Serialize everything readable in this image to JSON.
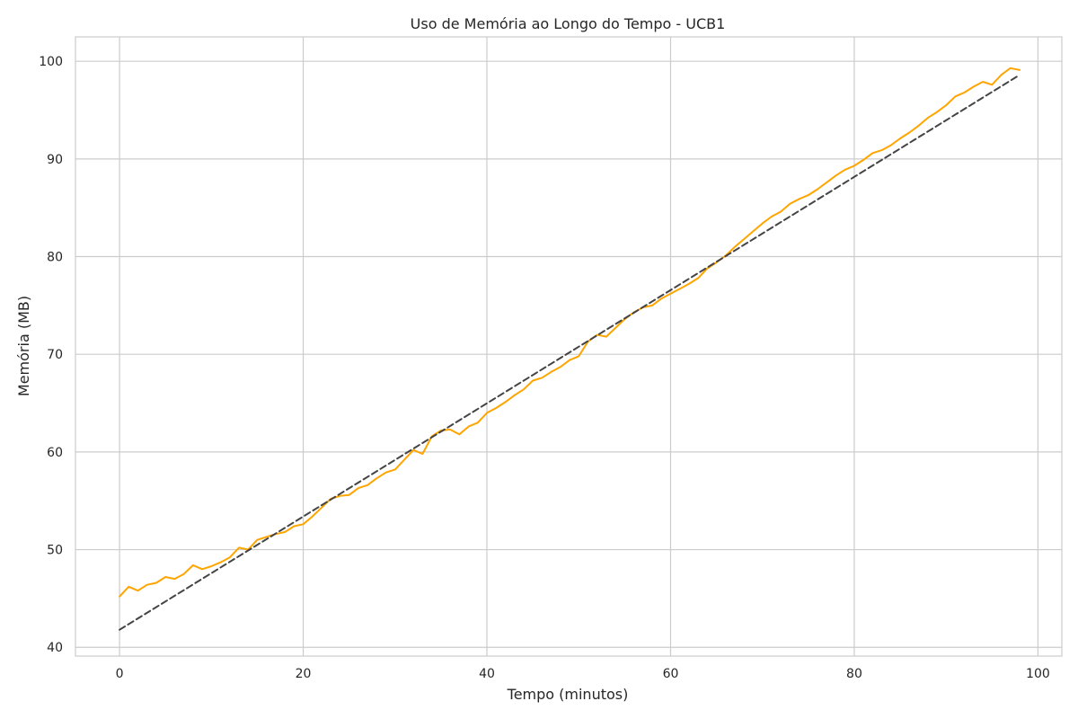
{
  "chart_data": {
    "type": "line",
    "title": "Uso de Memória ao Longo do Tempo - UCB1",
    "xlabel": "Tempo (minutos)",
    "ylabel": "Memória (MB)",
    "xlim": [
      -4.8,
      102.6
    ],
    "ylim": [
      39.1,
      102.5
    ],
    "xticks": [
      0,
      20,
      40,
      60,
      80,
      100
    ],
    "yticks": [
      40,
      50,
      60,
      70,
      80,
      90,
      100
    ],
    "grid": true,
    "series": [
      {
        "style": "solid",
        "color": "#ffa500",
        "x": [
          0,
          1,
          2,
          3,
          4,
          5,
          6,
          7,
          8,
          9,
          10,
          11,
          12,
          13,
          14,
          15,
          16,
          17,
          18,
          19,
          20,
          21,
          22,
          23,
          24,
          25,
          26,
          27,
          28,
          29,
          30,
          31,
          32,
          33,
          34,
          35,
          36,
          37,
          38,
          39,
          40,
          41,
          42,
          43,
          44,
          45,
          46,
          47,
          48,
          49,
          50,
          51,
          52,
          53,
          54,
          55,
          56,
          57,
          58,
          59,
          60,
          61,
          62,
          63,
          64,
          65,
          66,
          67,
          68,
          69,
          70,
          71,
          72,
          73,
          74,
          75,
          76,
          77,
          78,
          79,
          80,
          81,
          82,
          83,
          84,
          85,
          86,
          87,
          88,
          89,
          90,
          91,
          92,
          93,
          94,
          95,
          96,
          97,
          98
        ],
        "y": [
          45.2,
          46.2,
          45.8,
          46.4,
          46.6,
          47.2,
          47.0,
          47.5,
          48.4,
          48.0,
          48.3,
          48.7,
          49.2,
          50.2,
          50.0,
          51.0,
          51.3,
          51.6,
          51.8,
          52.4,
          52.6,
          53.4,
          54.3,
          55.2,
          55.5,
          55.6,
          56.3,
          56.6,
          57.3,
          57.9,
          58.2,
          59.2,
          60.2,
          59.8,
          61.6,
          62.2,
          62.3,
          61.8,
          62.6,
          63.0,
          64.0,
          64.5,
          65.1,
          65.8,
          66.4,
          67.3,
          67.6,
          68.2,
          68.7,
          69.4,
          69.8,
          71.3,
          72.0,
          71.8,
          72.7,
          73.6,
          74.3,
          74.8,
          75.0,
          75.7,
          76.2,
          76.7,
          77.2,
          77.8,
          78.8,
          79.4,
          80.1,
          81.0,
          81.8,
          82.6,
          83.4,
          84.1,
          84.6,
          85.4,
          85.9,
          86.3,
          86.9,
          87.6,
          88.3,
          88.9,
          89.3,
          89.9,
          90.6,
          90.9,
          91.4,
          92.1,
          92.7,
          93.4,
          94.2,
          94.8,
          95.5,
          96.4,
          96.8,
          97.4,
          97.9,
          97.6,
          98.6,
          99.3,
          99.1
        ]
      },
      {
        "style": "dashed",
        "color": "#444444",
        "x": [
          0,
          98
        ],
        "y": [
          41.8,
          98.6
        ]
      }
    ]
  }
}
